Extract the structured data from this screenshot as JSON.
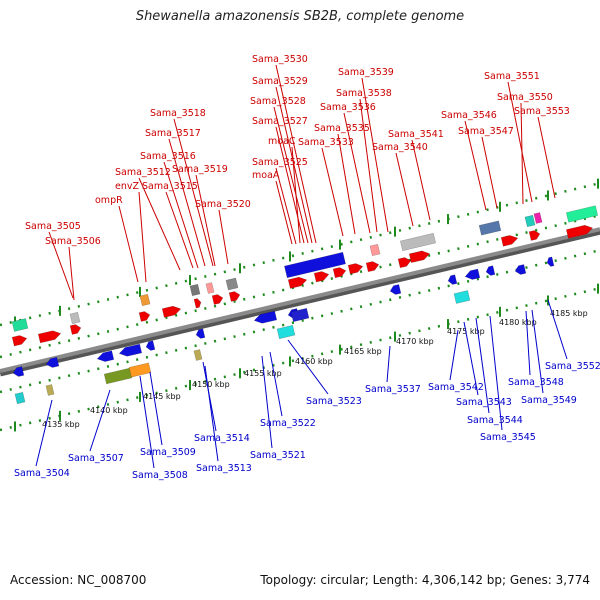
{
  "title": "Shewanella amazonensis SB2B, complete genome",
  "footer": {
    "accession": "Accession: NC_008700",
    "topology": "Topology: circular; Length: 4,306,142 bp; Genes: 3,774"
  },
  "colors": {
    "backbone": "#8a8a8a",
    "tick": "#1e8a1e",
    "top_label": "#cc0000",
    "bottom_label": "#0000cc",
    "forward_gene": "#ee0000",
    "reverse_gene": "#1010dd"
  },
  "scale_labels": [
    "4135 kbp",
    "4140 kbp",
    "4145 kbp",
    "4150 kbp",
    "4155 kbp",
    "4160 kbp",
    "4165 kbp",
    "4170 kbp",
    "4175 kbp",
    "4180 kbp",
    "4185 kbp"
  ],
  "top_labels": [
    "Sama_3505",
    "Sama_3506",
    "ompR",
    "envZ",
    "Sama_3512",
    "Sama_3515",
    "Sama_3516",
    "Sama_3517",
    "Sama_3518",
    "Sama_3519",
    "Sama_3520",
    "moaA",
    "Sama_3525",
    "moaC",
    "Sama_3527",
    "Sama_3528",
    "Sama_3529",
    "Sama_3530",
    "Sama_3533",
    "Sama_3535",
    "Sama_3536",
    "Sama_3538",
    "Sama_3539",
    "Sama_3540",
    "Sama_3541",
    "Sama_3546",
    "Sama_3547",
    "Sama_3550",
    "Sama_3551",
    "Sama_3553"
  ],
  "bottom_labels": [
    "Sama_3504",
    "Sama_3507",
    "Sama_3508",
    "Sama_3509",
    "Sama_3513",
    "Sama_3514",
    "Sama_3521",
    "Sama_3522",
    "Sama_3523",
    "Sama_3537",
    "Sama_3542",
    "Sama_3543",
    "Sama_3544",
    "Sama_3545",
    "Sama_3548",
    "Sama_3549",
    "Sama_3552"
  ]
}
